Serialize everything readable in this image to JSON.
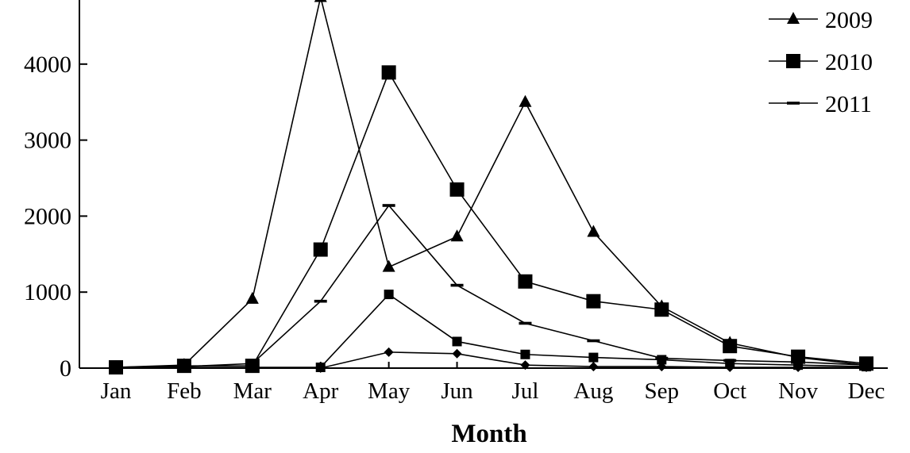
{
  "chart_data": {
    "type": "line",
    "xlabel": "Month",
    "ylabel": "",
    "categories": [
      "Jan",
      "Feb",
      "Mar",
      "Apr",
      "May",
      "Jun",
      "Jul",
      "Aug",
      "Sep",
      "Oct",
      "Nov",
      "Dec"
    ],
    "ylim": [
      0,
      5000
    ],
    "yticks": [
      0,
      1000,
      2000,
      3000,
      4000
    ],
    "grid": false,
    "legend": "top-right",
    "series": [
      {
        "name": "2009",
        "marker": "triangle",
        "values": [
          10,
          40,
          910,
          4880,
          1330,
          1730,
          3500,
          1790,
          810,
          330,
          140,
          40
        ]
      },
      {
        "name": "2010",
        "marker": "square",
        "values": [
          10,
          30,
          30,
          1560,
          3890,
          2350,
          1140,
          880,
          770,
          290,
          150,
          60
        ]
      },
      {
        "name": "2011",
        "marker": "dash",
        "values": [
          10,
          20,
          60,
          880,
          2140,
          1090,
          590,
          360,
          130,
          100,
          80,
          40
        ]
      },
      {
        "name": "",
        "marker": "small-square",
        "values": [
          0,
          10,
          10,
          10,
          970,
          350,
          180,
          140,
          110,
          60,
          40,
          20
        ]
      },
      {
        "name": "",
        "marker": "diamond",
        "values": [
          0,
          0,
          0,
          0,
          210,
          190,
          40,
          20,
          20,
          10,
          10,
          10
        ]
      }
    ]
  }
}
